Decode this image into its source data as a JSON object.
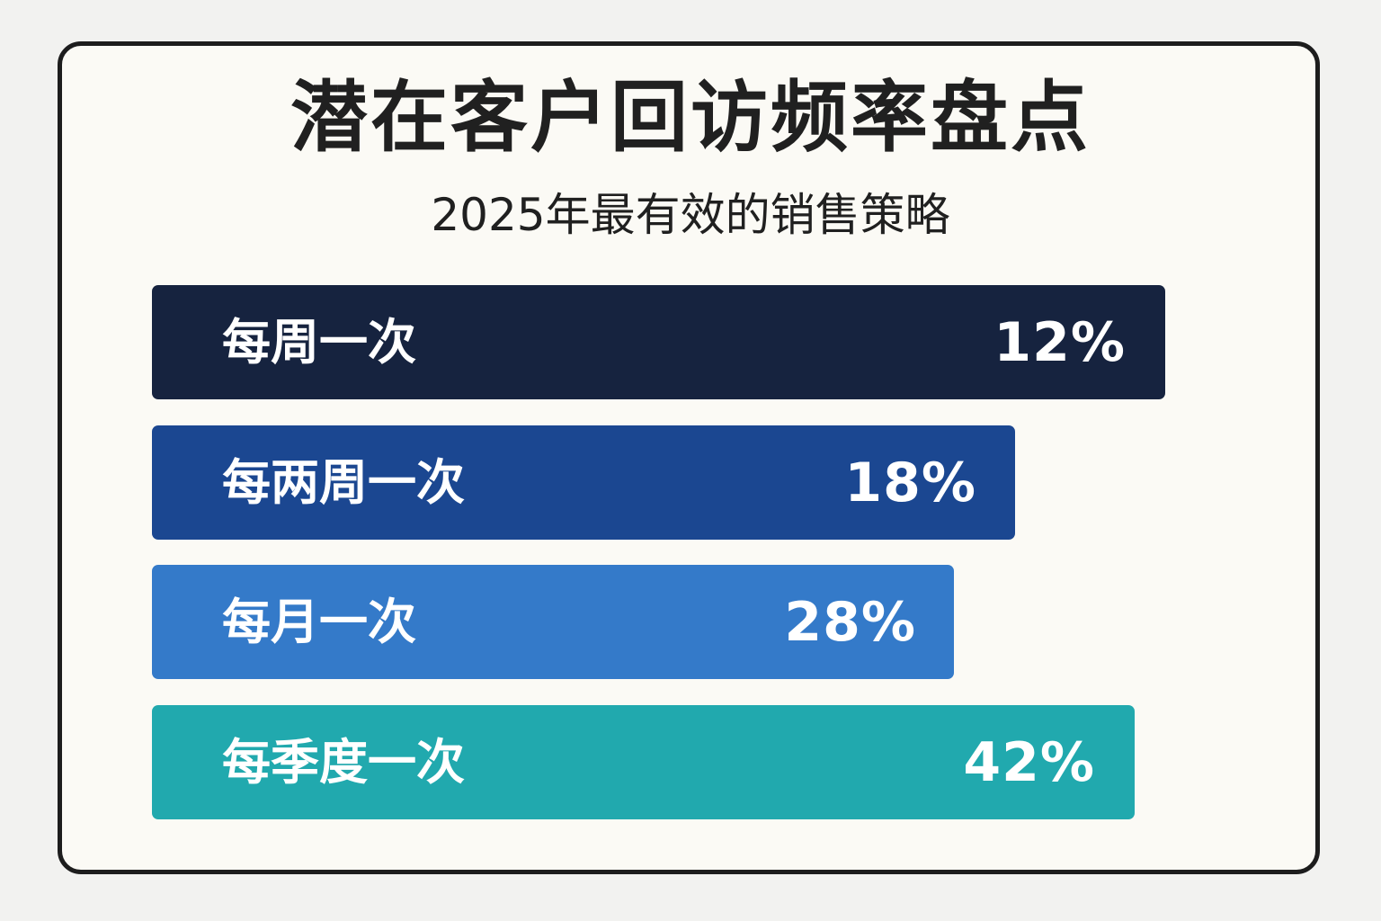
{
  "chart_data": {
    "type": "bar",
    "orientation": "horizontal",
    "title": "潜在客户回访频率盘点",
    "subtitle": "2025年最有效的销售策略",
    "categories": [
      "每周一次",
      "每两周一次",
      "每月一次",
      "每季度一次"
    ],
    "values": [
      12,
      18,
      28,
      42
    ],
    "value_labels": [
      "12%",
      "18%",
      "28%",
      "42%"
    ],
    "colors": [
      "#16233f",
      "#1b4791",
      "#347ac9",
      "#21a9ae"
    ],
    "grid": false,
    "legend": "none"
  }
}
